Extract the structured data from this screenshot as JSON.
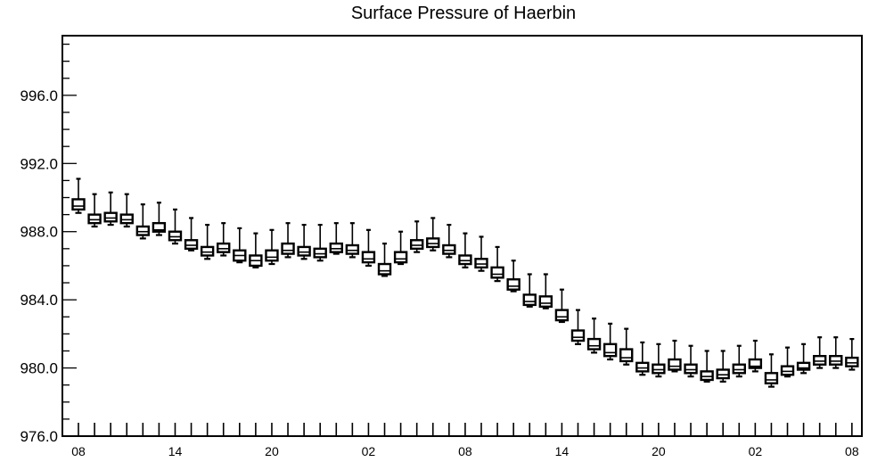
{
  "chart_data": {
    "type": "box",
    "title": "Surface Pressure of Haerbin",
    "xlabel": "",
    "ylabel": "",
    "ylim": [
      976.0,
      999.5
    ],
    "y_ticks": [
      "976.0",
      "980.0",
      "984.0",
      "988.0",
      "992.0",
      "996.0"
    ],
    "y_tick_values": [
      976,
      980,
      984,
      988,
      992,
      996
    ],
    "x_tick_labels": [
      "08",
      "14",
      "20",
      "02",
      "08",
      "14",
      "20",
      "02",
      "08"
    ],
    "x_tick_label_steps": [
      0,
      6,
      12,
      18,
      24,
      30,
      36,
      42,
      48
    ],
    "step_hours": 1,
    "boxes": [
      {
        "step": 0,
        "min": 989.1,
        "q1": 989.3,
        "median": 989.5,
        "q3": 989.9,
        "max": 991.1
      },
      {
        "step": 1,
        "min": 988.3,
        "q1": 988.5,
        "median": 988.7,
        "q3": 989.0,
        "max": 990.2
      },
      {
        "step": 2,
        "min": 988.4,
        "q1": 988.6,
        "median": 988.8,
        "q3": 989.1,
        "max": 990.3
      },
      {
        "step": 3,
        "min": 988.3,
        "q1": 988.5,
        "median": 988.7,
        "q3": 989.0,
        "max": 990.2
      },
      {
        "step": 4,
        "min": 987.6,
        "q1": 987.8,
        "median": 988.0,
        "q3": 988.3,
        "max": 989.6
      },
      {
        "step": 5,
        "min": 987.8,
        "q1": 988.0,
        "median": 988.1,
        "q3": 988.5,
        "max": 989.7
      },
      {
        "step": 6,
        "min": 987.3,
        "q1": 987.5,
        "median": 987.7,
        "q3": 988.0,
        "max": 989.3
      },
      {
        "step": 7,
        "min": 986.9,
        "q1": 987.0,
        "median": 987.2,
        "q3": 987.5,
        "max": 988.8
      },
      {
        "step": 8,
        "min": 986.4,
        "q1": 986.6,
        "median": 986.8,
        "q3": 987.1,
        "max": 988.4
      },
      {
        "step": 9,
        "min": 986.6,
        "q1": 986.8,
        "median": 987.0,
        "q3": 987.3,
        "max": 988.5
      },
      {
        "step": 10,
        "min": 986.2,
        "q1": 986.3,
        "median": 986.6,
        "q3": 986.9,
        "max": 988.2
      },
      {
        "step": 11,
        "min": 985.9,
        "q1": 986.0,
        "median": 986.3,
        "q3": 986.6,
        "max": 987.9
      },
      {
        "step": 12,
        "min": 986.1,
        "q1": 986.3,
        "median": 986.5,
        "q3": 986.9,
        "max": 988.1
      },
      {
        "step": 13,
        "min": 986.5,
        "q1": 986.7,
        "median": 986.9,
        "q3": 987.3,
        "max": 988.5
      },
      {
        "step": 14,
        "min": 986.4,
        "q1": 986.6,
        "median": 986.8,
        "q3": 987.1,
        "max": 988.4
      },
      {
        "step": 15,
        "min": 986.3,
        "q1": 986.5,
        "median": 986.7,
        "q3": 987.0,
        "max": 988.4
      },
      {
        "step": 16,
        "min": 986.7,
        "q1": 986.8,
        "median": 987.0,
        "q3": 987.3,
        "max": 988.5
      },
      {
        "step": 17,
        "min": 986.5,
        "q1": 986.7,
        "median": 986.9,
        "q3": 987.2,
        "max": 988.5
      },
      {
        "step": 18,
        "min": 986.0,
        "q1": 986.2,
        "median": 986.4,
        "q3": 986.8,
        "max": 988.1
      },
      {
        "step": 19,
        "min": 985.4,
        "q1": 985.5,
        "median": 985.7,
        "q3": 986.1,
        "max": 987.3
      },
      {
        "step": 20,
        "min": 986.1,
        "q1": 986.2,
        "median": 986.4,
        "q3": 986.8,
        "max": 988.0
      },
      {
        "step": 21,
        "min": 986.8,
        "q1": 987.0,
        "median": 987.2,
        "q3": 987.5,
        "max": 988.6
      },
      {
        "step": 22,
        "min": 986.9,
        "q1": 987.1,
        "median": 987.3,
        "q3": 987.6,
        "max": 988.8
      },
      {
        "step": 23,
        "min": 986.5,
        "q1": 986.7,
        "median": 986.9,
        "q3": 987.2,
        "max": 988.4
      },
      {
        "step": 24,
        "min": 985.9,
        "q1": 986.1,
        "median": 986.3,
        "q3": 986.6,
        "max": 987.9
      },
      {
        "step": 25,
        "min": 985.7,
        "q1": 985.9,
        "median": 986.1,
        "q3": 986.4,
        "max": 987.7
      },
      {
        "step": 26,
        "min": 985.1,
        "q1": 985.3,
        "median": 985.5,
        "q3": 985.9,
        "max": 987.1
      },
      {
        "step": 27,
        "min": 984.5,
        "q1": 984.6,
        "median": 984.8,
        "q3": 985.2,
        "max": 986.3
      },
      {
        "step": 28,
        "min": 983.6,
        "q1": 983.7,
        "median": 983.9,
        "q3": 984.3,
        "max": 985.5
      },
      {
        "step": 29,
        "min": 983.5,
        "q1": 983.6,
        "median": 983.8,
        "q3": 984.2,
        "max": 985.5
      },
      {
        "step": 30,
        "min": 982.7,
        "q1": 982.8,
        "median": 983.0,
        "q3": 983.4,
        "max": 984.6
      },
      {
        "step": 31,
        "min": 981.4,
        "q1": 981.6,
        "median": 981.8,
        "q3": 982.2,
        "max": 983.4
      },
      {
        "step": 32,
        "min": 980.9,
        "q1": 981.1,
        "median": 981.3,
        "q3": 981.7,
        "max": 982.9
      },
      {
        "step": 33,
        "min": 980.5,
        "q1": 980.7,
        "median": 980.9,
        "q3": 981.4,
        "max": 982.6
      },
      {
        "step": 34,
        "min": 980.2,
        "q1": 980.4,
        "median": 980.6,
        "q3": 981.1,
        "max": 982.3
      },
      {
        "step": 35,
        "min": 979.6,
        "q1": 979.8,
        "median": 980.0,
        "q3": 980.3,
        "max": 981.5
      },
      {
        "step": 36,
        "min": 979.5,
        "q1": 979.7,
        "median": 979.9,
        "q3": 980.2,
        "max": 981.4
      },
      {
        "step": 37,
        "min": 979.8,
        "q1": 979.9,
        "median": 980.1,
        "q3": 980.5,
        "max": 981.6
      },
      {
        "step": 38,
        "min": 979.5,
        "q1": 979.7,
        "median": 979.9,
        "q3": 980.2,
        "max": 981.3
      },
      {
        "step": 39,
        "min": 979.2,
        "q1": 979.3,
        "median": 979.5,
        "q3": 979.8,
        "max": 981.0
      },
      {
        "step": 40,
        "min": 979.2,
        "q1": 979.4,
        "median": 979.6,
        "q3": 979.9,
        "max": 981.0
      },
      {
        "step": 41,
        "min": 979.5,
        "q1": 979.7,
        "median": 979.9,
        "q3": 980.2,
        "max": 981.3
      },
      {
        "step": 42,
        "min": 979.8,
        "q1": 980.0,
        "median": 980.1,
        "q3": 980.5,
        "max": 981.6
      },
      {
        "step": 43,
        "min": 978.9,
        "q1": 979.1,
        "median": 979.3,
        "q3": 979.7,
        "max": 980.8
      },
      {
        "step": 44,
        "min": 979.5,
        "q1": 979.6,
        "median": 979.8,
        "q3": 980.1,
        "max": 981.2
      },
      {
        "step": 45,
        "min": 979.7,
        "q1": 979.9,
        "median": 980.0,
        "q3": 980.3,
        "max": 981.4
      },
      {
        "step": 46,
        "min": 980.0,
        "q1": 980.2,
        "median": 980.4,
        "q3": 980.7,
        "max": 981.8
      },
      {
        "step": 47,
        "min": 980.0,
        "q1": 980.2,
        "median": 980.4,
        "q3": 980.7,
        "max": 981.8
      },
      {
        "step": 48,
        "min": 979.9,
        "q1": 980.1,
        "median": 980.3,
        "q3": 980.6,
        "max": 981.7
      }
    ]
  }
}
